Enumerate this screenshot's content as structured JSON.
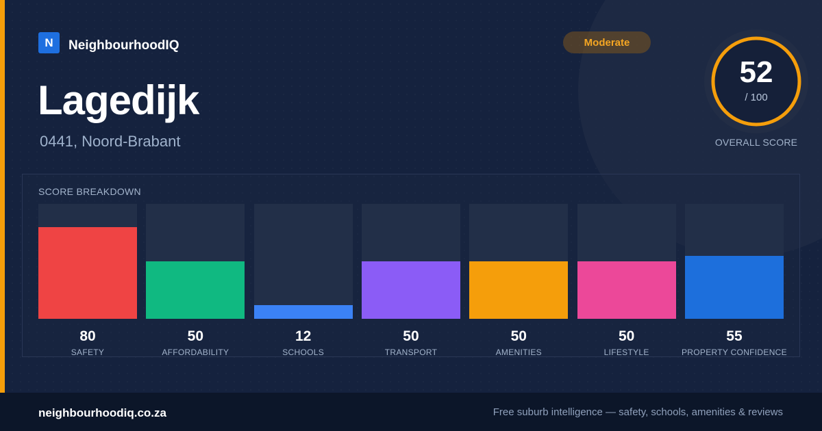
{
  "brand": {
    "logo_letter": "N",
    "name": "NeighbourhoodIQ",
    "accent_color": "#f59e0b"
  },
  "location": {
    "name": "Lagedijk",
    "subtitle": "0441, Noord-Brabant"
  },
  "rating_badge": "Moderate",
  "overall": {
    "score": "52",
    "max": "/ 100",
    "label": "OVERALL SCORE",
    "fraction": 0.52
  },
  "breakdown": {
    "title": "SCORE BREAKDOWN",
    "items": [
      {
        "label": "SAFETY",
        "value": 80,
        "color": "#ef4444"
      },
      {
        "label": "AFFORDABILITY",
        "value": 50,
        "color": "#10b981"
      },
      {
        "label": "SCHOOLS",
        "value": 12,
        "color": "#3b82f6"
      },
      {
        "label": "TRANSPORT",
        "value": 50,
        "color": "#8b5cf6"
      },
      {
        "label": "AMENITIES",
        "value": 50,
        "color": "#f59e0b"
      },
      {
        "label": "LIFESTYLE",
        "value": 50,
        "color": "#ec4899"
      },
      {
        "label": "PROPERTY CONFIDENCE",
        "value": 55,
        "color": "#1d6fdc"
      }
    ]
  },
  "footer": {
    "site": "neighbourhoodiq.co.za",
    "tagline": "Free suburb intelligence — safety, schools, amenities & reviews"
  }
}
